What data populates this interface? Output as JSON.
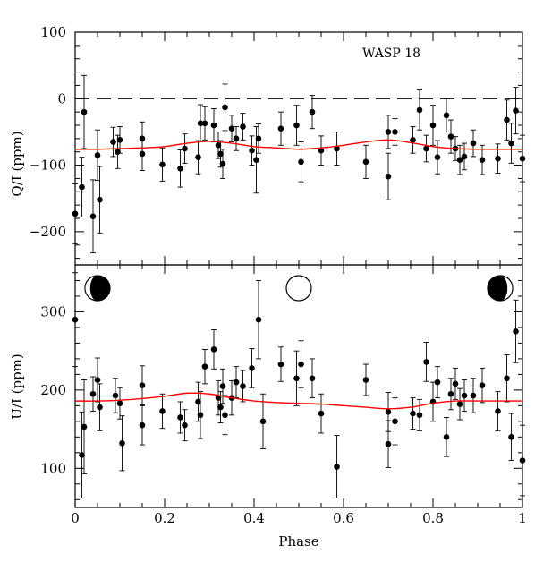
{
  "chart_data": [
    {
      "type": "scatter",
      "panel": "top",
      "annotation": "WASP 18",
      "xlabel": "",
      "ylabel": "Q/I (ppm)",
      "xlim": [
        0,
        1
      ],
      "ylim": [
        -250,
        100
      ],
      "yticks": [
        -200,
        -100,
        0,
        100
      ],
      "ytick_labels": [
        "−200",
        "−100",
        "0",
        "100"
      ],
      "reference_line": {
        "y": 0,
        "style": "dashed"
      },
      "series": [
        {
          "kind": "points_with_errorbars",
          "points": [
            {
              "x": 0.0,
              "y": -173,
              "err": 45
            },
            {
              "x": 0.015,
              "y": -133,
              "err": 45
            },
            {
              "x": 0.02,
              "y": -20,
              "err": 55
            },
            {
              "x": 0.04,
              "y": -177,
              "err": 55
            },
            {
              "x": 0.05,
              "y": -85,
              "err": 38
            },
            {
              "x": 0.055,
              "y": -152,
              "err": 50
            },
            {
              "x": 0.085,
              "y": -65,
              "err": 22
            },
            {
              "x": 0.095,
              "y": -80,
              "err": 25
            },
            {
              "x": 0.1,
              "y": -62,
              "err": 20
            },
            {
              "x": 0.15,
              "y": -83,
              "err": 25
            },
            {
              "x": 0.15,
              "y": -60,
              "err": 25
            },
            {
              "x": 0.195,
              "y": -99,
              "err": 25
            },
            {
              "x": 0.235,
              "y": -105,
              "err": 28
            },
            {
              "x": 0.245,
              "y": -75,
              "err": 22
            },
            {
              "x": 0.275,
              "y": -88,
              "err": 25
            },
            {
              "x": 0.28,
              "y": -37,
              "err": 28
            },
            {
              "x": 0.29,
              "y": -37,
              "err": 25
            },
            {
              "x": 0.31,
              "y": -40,
              "err": 25
            },
            {
              "x": 0.32,
              "y": -70,
              "err": 20
            },
            {
              "x": 0.325,
              "y": -83,
              "err": 20
            },
            {
              "x": 0.33,
              "y": -98,
              "err": 22
            },
            {
              "x": 0.335,
              "y": -13,
              "err": 35
            },
            {
              "x": 0.35,
              "y": -45,
              "err": 20
            },
            {
              "x": 0.36,
              "y": -60,
              "err": 18
            },
            {
              "x": 0.375,
              "y": -42,
              "err": 20
            },
            {
              "x": 0.395,
              "y": -78,
              "err": 22
            },
            {
              "x": 0.405,
              "y": -92,
              "err": 50
            },
            {
              "x": 0.41,
              "y": -60,
              "err": 22
            },
            {
              "x": 0.46,
              "y": -45,
              "err": 25
            },
            {
              "x": 0.495,
              "y": -40,
              "err": 30
            },
            {
              "x": 0.505,
              "y": -95,
              "err": 30
            },
            {
              "x": 0.53,
              "y": -20,
              "err": 25
            },
            {
              "x": 0.55,
              "y": -78,
              "err": 22
            },
            {
              "x": 0.585,
              "y": -75,
              "err": 25
            },
            {
              "x": 0.65,
              "y": -95,
              "err": 25
            },
            {
              "x": 0.7,
              "y": -117,
              "err": 35
            },
            {
              "x": 0.7,
              "y": -50,
              "err": 25
            },
            {
              "x": 0.715,
              "y": -50,
              "err": 20
            },
            {
              "x": 0.755,
              "y": -62,
              "err": 20
            },
            {
              "x": 0.77,
              "y": -17,
              "err": 30
            },
            {
              "x": 0.785,
              "y": -75,
              "err": 20
            },
            {
              "x": 0.8,
              "y": -40,
              "err": 30
            },
            {
              "x": 0.81,
              "y": -88,
              "err": 25
            },
            {
              "x": 0.83,
              "y": -25,
              "err": 25
            },
            {
              "x": 0.84,
              "y": -57,
              "err": 25
            },
            {
              "x": 0.85,
              "y": -75,
              "err": 18
            },
            {
              "x": 0.86,
              "y": -92,
              "err": 22
            },
            {
              "x": 0.87,
              "y": -87,
              "err": 20
            },
            {
              "x": 0.89,
              "y": -67,
              "err": 20
            },
            {
              "x": 0.91,
              "y": -92,
              "err": 22
            },
            {
              "x": 0.945,
              "y": -90,
              "err": 22
            },
            {
              "x": 0.965,
              "y": -32,
              "err": 30
            },
            {
              "x": 0.975,
              "y": -67,
              "err": 30
            },
            {
              "x": 0.985,
              "y": -18,
              "err": 35
            },
            {
              "x": 1.0,
              "y": -90,
              "err": 35
            }
          ]
        },
        {
          "kind": "model_curve",
          "color": "#ff0000",
          "x": [
            0.0,
            0.05,
            0.1,
            0.15,
            0.2,
            0.25,
            0.3,
            0.35,
            0.4,
            0.45,
            0.5,
            0.55,
            0.6,
            0.65,
            0.7,
            0.75,
            0.8,
            0.85,
            0.9,
            0.95,
            1.0
          ],
          "y": [
            -76,
            -76,
            -75,
            -74,
            -72,
            -67,
            -64,
            -67,
            -72,
            -74,
            -76,
            -74,
            -70,
            -65,
            -62,
            -66,
            -72,
            -75,
            -76,
            -76,
            -76
          ]
        }
      ]
    },
    {
      "type": "scatter",
      "panel": "bottom",
      "xlabel": "Phase",
      "ylabel": "U/I (ppm)",
      "xlim": [
        0,
        1
      ],
      "ylim": [
        50,
        360
      ],
      "xticks": [
        0,
        0.2,
        0.4,
        0.6,
        0.8,
        1
      ],
      "xtick_labels": [
        "0",
        "0.2",
        "0.4",
        "0.6",
        "0.8",
        "1"
      ],
      "yticks": [
        100,
        200,
        300
      ],
      "ytick_labels": [
        "100",
        "200",
        "300"
      ],
      "phase_markers": [
        {
          "x": 0.05,
          "phase": "crescent-left"
        },
        {
          "x": 0.5,
          "phase": "full"
        },
        {
          "x": 0.95,
          "phase": "crescent-right"
        }
      ],
      "series": [
        {
          "kind": "points_with_errorbars",
          "points": [
            {
              "x": 0.0,
              "y": 290,
              "err": 60
            },
            {
              "x": 0.015,
              "y": 117,
              "err": 55
            },
            {
              "x": 0.02,
              "y": 153,
              "err": 60
            },
            {
              "x": 0.04,
              "y": 195,
              "err": 22
            },
            {
              "x": 0.05,
              "y": 213,
              "err": 28
            },
            {
              "x": 0.055,
              "y": 178,
              "err": 30
            },
            {
              "x": 0.09,
              "y": 193,
              "err": 22
            },
            {
              "x": 0.1,
              "y": 183,
              "err": 20
            },
            {
              "x": 0.105,
              "y": 132,
              "err": 35
            },
            {
              "x": 0.15,
              "y": 206,
              "err": 25
            },
            {
              "x": 0.15,
              "y": 155,
              "err": 25
            },
            {
              "x": 0.195,
              "y": 173,
              "err": 22
            },
            {
              "x": 0.235,
              "y": 165,
              "err": 20
            },
            {
              "x": 0.245,
              "y": 155,
              "err": 20
            },
            {
              "x": 0.275,
              "y": 185,
              "err": 25
            },
            {
              "x": 0.28,
              "y": 168,
              "err": 30
            },
            {
              "x": 0.29,
              "y": 230,
              "err": 22
            },
            {
              "x": 0.31,
              "y": 252,
              "err": 25
            },
            {
              "x": 0.32,
              "y": 190,
              "err": 22
            },
            {
              "x": 0.325,
              "y": 178,
              "err": 20
            },
            {
              "x": 0.33,
              "y": 205,
              "err": 22
            },
            {
              "x": 0.335,
              "y": 168,
              "err": 25
            },
            {
              "x": 0.35,
              "y": 190,
              "err": 22
            },
            {
              "x": 0.36,
              "y": 210,
              "err": 20
            },
            {
              "x": 0.375,
              "y": 205,
              "err": 20
            },
            {
              "x": 0.395,
              "y": 228,
              "err": 25
            },
            {
              "x": 0.41,
              "y": 290,
              "err": 50
            },
            {
              "x": 0.42,
              "y": 160,
              "err": 35
            },
            {
              "x": 0.46,
              "y": 233,
              "err": 22
            },
            {
              "x": 0.495,
              "y": 215,
              "err": 35
            },
            {
              "x": 0.505,
              "y": 233,
              "err": 30
            },
            {
              "x": 0.53,
              "y": 215,
              "err": 25
            },
            {
              "x": 0.55,
              "y": 170,
              "err": 25
            },
            {
              "x": 0.585,
              "y": 102,
              "err": 40
            },
            {
              "x": 0.65,
              "y": 213,
              "err": 20
            },
            {
              "x": 0.7,
              "y": 131,
              "err": 30
            },
            {
              "x": 0.7,
              "y": 172,
              "err": 25
            },
            {
              "x": 0.715,
              "y": 160,
              "err": 30
            },
            {
              "x": 0.755,
              "y": 170,
              "err": 20
            },
            {
              "x": 0.77,
              "y": 168,
              "err": 20
            },
            {
              "x": 0.785,
              "y": 236,
              "err": 25
            },
            {
              "x": 0.8,
              "y": 185,
              "err": 25
            },
            {
              "x": 0.81,
              "y": 210,
              "err": 20
            },
            {
              "x": 0.83,
              "y": 140,
              "err": 25
            },
            {
              "x": 0.84,
              "y": 195,
              "err": 20
            },
            {
              "x": 0.85,
              "y": 208,
              "err": 20
            },
            {
              "x": 0.86,
              "y": 182,
              "err": 20
            },
            {
              "x": 0.87,
              "y": 193,
              "err": 20
            },
            {
              "x": 0.89,
              "y": 193,
              "err": 22
            },
            {
              "x": 0.91,
              "y": 206,
              "err": 22
            },
            {
              "x": 0.945,
              "y": 173,
              "err": 25
            },
            {
              "x": 0.965,
              "y": 215,
              "err": 30
            },
            {
              "x": 0.975,
              "y": 140,
              "err": 30
            },
            {
              "x": 0.985,
              "y": 275,
              "err": 40
            },
            {
              "x": 1.0,
              "y": 110,
              "err": 45
            }
          ]
        },
        {
          "kind": "model_curve",
          "color": "#ff0000",
          "x": [
            0.0,
            0.05,
            0.1,
            0.15,
            0.2,
            0.25,
            0.3,
            0.35,
            0.4,
            0.45,
            0.5,
            0.55,
            0.6,
            0.65,
            0.7,
            0.75,
            0.8,
            0.85,
            0.9,
            0.95,
            1.0
          ],
          "y": [
            186,
            186,
            187,
            189,
            192,
            196,
            195,
            190,
            186,
            184,
            183,
            182,
            180,
            178,
            176,
            178,
            183,
            186,
            186,
            186,
            186
          ]
        }
      ]
    }
  ]
}
